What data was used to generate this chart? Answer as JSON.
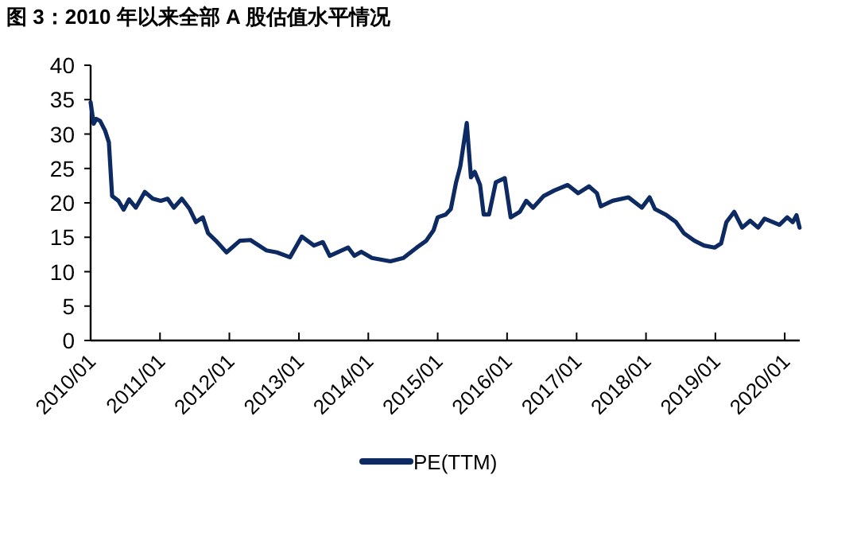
{
  "chart_data": {
    "type": "line",
    "title": "图 3：2010 年以来全部 A 股估值水平情况",
    "x": [
      "2010-01-01",
      "2010-01-17",
      "2010-01-31",
      "2010-02-20",
      "2010-03-18",
      "2010-04-07",
      "2010-04-24",
      "2010-05-27",
      "2010-06-24",
      "2010-07-22",
      "2010-08-27",
      "2010-10-13",
      "2010-11-24",
      "2011-01-05",
      "2011-02-10",
      "2011-03-15",
      "2011-04-26",
      "2011-06-06",
      "2011-07-09",
      "2011-08-14",
      "2011-09-11",
      "2011-10-22",
      "2011-12-17",
      "2012-02-25",
      "2012-04-21",
      "2012-07-13",
      "2012-09-07",
      "2012-11-15",
      "2013-01-16",
      "2013-03-21",
      "2013-05-07",
      "2013-06-12",
      "2013-09-17",
      "2013-10-20",
      "2013-11-25",
      "2014-01-20",
      "2014-04-27",
      "2014-07-05",
      "2014-09-13",
      "2014-11-02",
      "2014-12-10",
      "2015-01-01",
      "2015-02-12",
      "2015-03-11",
      "2015-04-08",
      "2015-04-30",
      "2015-06-03",
      "2015-06-25",
      "2015-07-15",
      "2015-08-12",
      "2015-08-31",
      "2015-09-28",
      "2015-11-03",
      "2015-12-20",
      "2016-01-20",
      "2016-03-08",
      "2016-04-11",
      "2016-05-17",
      "2016-07-12",
      "2016-09-06",
      "2016-11-15",
      "2017-01-09",
      "2017-03-07",
      "2017-04-18",
      "2017-05-08",
      "2017-07-10",
      "2017-10-01",
      "2017-12-10",
      "2018-01-20",
      "2018-02-17",
      "2018-04-14",
      "2018-06-08",
      "2018-07-19",
      "2018-09-13",
      "2018-11-02",
      "2018-12-28",
      "2019-01-31",
      "2019-02-28",
      "2019-04-10",
      "2019-05-22",
      "2019-07-03",
      "2019-08-14",
      "2019-09-17",
      "2019-12-04",
      "2020-01-14",
      "2020-02-12",
      "2020-03-03",
      "2020-03-19"
    ],
    "series": [
      {
        "name": "PE(TTM)",
        "color": "#0d2a63",
        "values": [
          34.6,
          31.5,
          32.2,
          31.9,
          30.5,
          28.8,
          21.0,
          20.3,
          19.0,
          20.5,
          19.3,
          21.6,
          20.6,
          20.3,
          20.6,
          19.3,
          20.6,
          19.1,
          17.2,
          17.9,
          15.6,
          14.5,
          12.8,
          14.5,
          14.6,
          13.1,
          12.8,
          12.1,
          15.1,
          13.8,
          14.3,
          12.3,
          13.5,
          12.3,
          12.9,
          12.0,
          11.5,
          12.0,
          13.5,
          14.5,
          16.0,
          17.9,
          18.3,
          19.1,
          23.0,
          25.3,
          31.6,
          23.7,
          24.5,
          22.6,
          18.3,
          18.3,
          23.0,
          23.6,
          17.9,
          18.7,
          20.3,
          19.3,
          21.0,
          21.8,
          22.6,
          21.4,
          22.4,
          21.4,
          19.5,
          20.3,
          20.8,
          19.3,
          20.8,
          19.1,
          18.3,
          17.2,
          15.6,
          14.5,
          13.8,
          13.5,
          14.1,
          17.2,
          18.7,
          16.4,
          17.4,
          16.4,
          17.7,
          16.8,
          17.9,
          17.2,
          18.2,
          16.4
        ]
      }
    ],
    "xlim": [
      "2010-01-01",
      "2020-03-20"
    ],
    "xticks": [
      {
        "value": "2010-01-01",
        "label": "2010/01"
      },
      {
        "value": "2011-01-01",
        "label": "2011/01"
      },
      {
        "value": "2012-01-01",
        "label": "2012/01"
      },
      {
        "value": "2013-01-01",
        "label": "2013/01"
      },
      {
        "value": "2014-01-01",
        "label": "2014/01"
      },
      {
        "value": "2015-01-01",
        "label": "2015/01"
      },
      {
        "value": "2016-01-01",
        "label": "2016/01"
      },
      {
        "value": "2017-01-01",
        "label": "2017/01"
      },
      {
        "value": "2018-01-01",
        "label": "2018/01"
      },
      {
        "value": "2019-01-01",
        "label": "2019/01"
      },
      {
        "value": "2020-01-01",
        "label": "2020/01"
      }
    ],
    "ylim": [
      0,
      40
    ],
    "yticks": [
      0,
      5,
      10,
      15,
      20,
      25,
      30,
      35,
      40
    ],
    "grid": false,
    "legend": "bottom",
    "marker": "none",
    "line_style": "solid"
  }
}
